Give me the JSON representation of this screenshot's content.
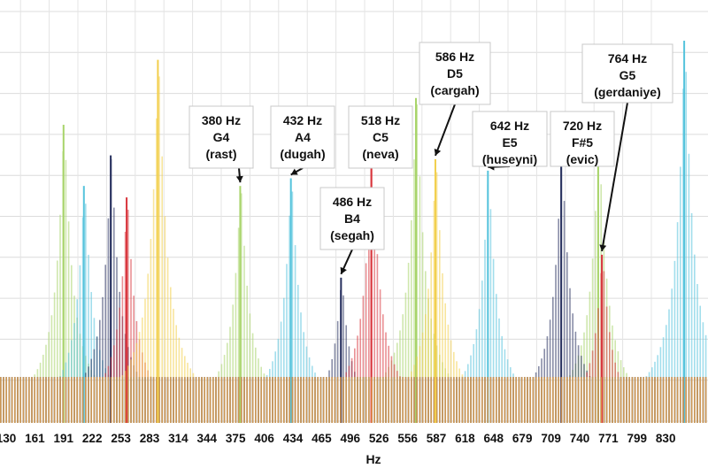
{
  "chart_data": {
    "type": "bar",
    "xlabel": "Hz",
    "xlim": [
      130,
      850
    ],
    "ylim": [
      0,
      1
    ],
    "grid": "horizontal",
    "x_ticks": [
      "130",
      "161",
      "191",
      "222",
      "253",
      "283",
      "314",
      "344",
      "375",
      "406",
      "434",
      "465",
      "496",
      "526",
      "556",
      "587",
      "618",
      "648",
      "679",
      "709",
      "740",
      "771",
      "799",
      "830"
    ],
    "colors": {
      "green": "#a8d46a",
      "blue": "#55c3dc",
      "navy": "#27305e",
      "red": "#d8343c",
      "yellow": "#f2cf4c"
    },
    "series": [
      {
        "color": "green",
        "peaks": [
          {
            "hz": 191,
            "amp": 0.78
          },
          {
            "hz": 380,
            "amp": 0.62
          },
          {
            "hz": 565,
            "amp": 0.85
          },
          {
            "hz": 760,
            "amp": 0.75
          }
        ]
      },
      {
        "color": "blue",
        "peaks": [
          {
            "hz": 213,
            "amp": 0.62
          },
          {
            "hz": 432,
            "amp": 0.64
          },
          {
            "hz": 642,
            "amp": 0.66
          },
          {
            "hz": 850,
            "amp": 1.0
          }
        ]
      },
      {
        "color": "navy",
        "peaks": [
          {
            "hz": 242,
            "amp": 0.7
          },
          {
            "hz": 486,
            "amp": 0.38
          },
          {
            "hz": 720,
            "amp": 0.71
          }
        ]
      },
      {
        "color": "red",
        "peaks": [
          {
            "hz": 259,
            "amp": 0.59
          },
          {
            "hz": 518,
            "amp": 0.71
          },
          {
            "hz": 764,
            "amp": 0.44
          }
        ]
      },
      {
        "color": "yellow",
        "peaks": [
          {
            "hz": 292,
            "amp": 0.95
          },
          {
            "hz": 586,
            "amp": 0.69
          }
        ]
      }
    ],
    "annotations": [
      {
        "hz": 380,
        "freq": "380 Hz",
        "note": "G4",
        "name": "(rast)"
      },
      {
        "hz": 432,
        "freq": "432 Hz",
        "note": "A4",
        "name": "(dugah)"
      },
      {
        "hz": 486,
        "freq": "486 Hz",
        "note": "B4",
        "name": "(segah)"
      },
      {
        "hz": 518,
        "freq": "518 Hz",
        "note": "C5",
        "name": "(neva)"
      },
      {
        "hz": 586,
        "freq": "586 Hz",
        "note": "D5",
        "name": "(cargah)"
      },
      {
        "hz": 642,
        "freq": "642 Hz",
        "note": "E5",
        "name": "(huseyni)"
      },
      {
        "hz": 720,
        "freq": "720 Hz",
        "note": "F#5",
        "name": "(evic)"
      },
      {
        "hz": 764,
        "freq": "764 Hz",
        "note": "G5",
        "name": "(gerdaniye)"
      }
    ]
  }
}
